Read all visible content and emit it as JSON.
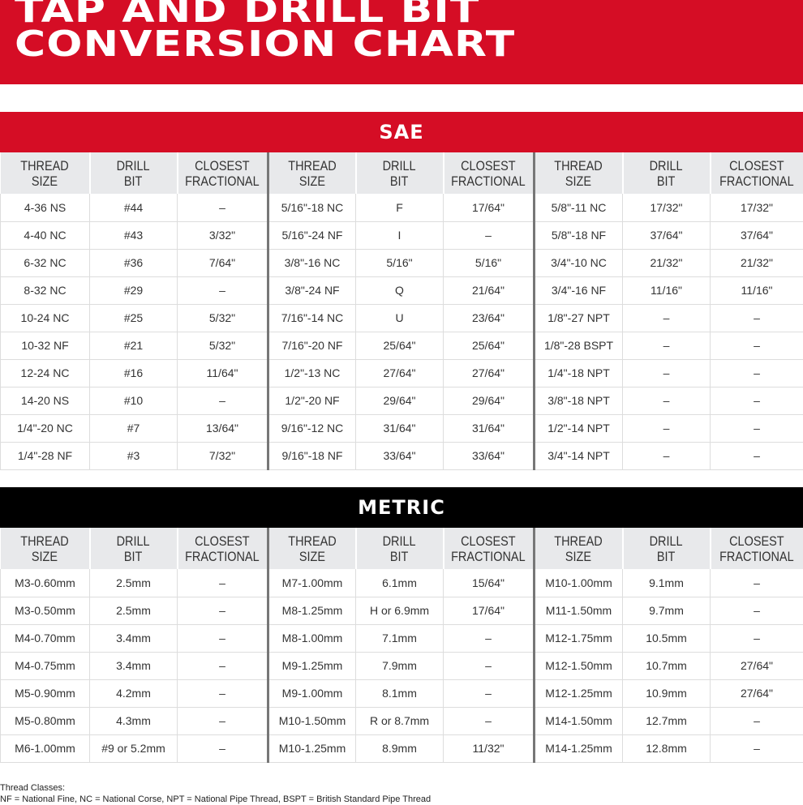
{
  "title": {
    "line1": "TAP AND DRILL BIT",
    "line2": "CONVERSION CHART"
  },
  "colors": {
    "red": "#d50d25",
    "black": "#000000"
  },
  "headers": [
    "THREAD SIZE",
    "DRILL BIT",
    "CLOSEST FRACTIONAL"
  ],
  "sae": {
    "label": "SAE",
    "rows": [
      [
        "4-36 NS",
        "#44",
        "–",
        "5/16\"-18 NC",
        "F",
        "17/64\"",
        "5/8\"-11 NC",
        "17/32\"",
        "17/32\""
      ],
      [
        "4-40 NC",
        "#43",
        "3/32\"",
        "5/16\"-24 NF",
        "I",
        "–",
        "5/8\"-18 NF",
        "37/64\"",
        "37/64\""
      ],
      [
        "6-32 NC",
        "#36",
        "7/64\"",
        "3/8\"-16 NC",
        "5/16\"",
        "5/16\"",
        "3/4\"-10 NC",
        "21/32\"",
        "21/32\""
      ],
      [
        "8-32 NC",
        "#29",
        "–",
        "3/8\"-24 NF",
        "Q",
        "21/64\"",
        "3/4\"-16 NF",
        "11/16\"",
        "11/16\""
      ],
      [
        "10-24 NC",
        "#25",
        "5/32\"",
        "7/16\"-14 NC",
        "U",
        "23/64\"",
        "1/8\"-27 NPT",
        "–",
        "–"
      ],
      [
        "10-32 NF",
        "#21",
        "5/32\"",
        "7/16\"-20 NF",
        "25/64\"",
        "25/64\"",
        "1/8\"-28 BSPT",
        "–",
        "–"
      ],
      [
        "12-24 NC",
        "#16",
        "11/64\"",
        "1/2\"-13 NC",
        "27/64\"",
        "27/64\"",
        "1/4\"-18 NPT",
        "–",
        "–"
      ],
      [
        "14-20 NS",
        "#10",
        "–",
        "1/2\"-20 NF",
        "29/64\"",
        "29/64\"",
        "3/8\"-18 NPT",
        "–",
        "–"
      ],
      [
        "1/4\"-20 NC",
        "#7",
        "13/64\"",
        "9/16\"-12 NC",
        "31/64\"",
        "31/64\"",
        "1/2\"-14 NPT",
        "–",
        "–"
      ],
      [
        "1/4\"-28 NF",
        "#3",
        "7/32\"",
        "9/16\"-18 NF",
        "33/64\"",
        "33/64\"",
        "3/4\"-14 NPT",
        "–",
        "–"
      ]
    ]
  },
  "metric": {
    "label": "METRIC",
    "rows": [
      [
        "M3-0.60mm",
        "2.5mm",
        "–",
        "M7-1.00mm",
        "6.1mm",
        "15/64\"",
        "M10-1.00mm",
        "9.1mm",
        "–"
      ],
      [
        "M3-0.50mm",
        "2.5mm",
        "–",
        "M8-1.25mm",
        "H or 6.9mm",
        "17/64\"",
        "M11-1.50mm",
        "9.7mm",
        "–"
      ],
      [
        "M4-0.70mm",
        "3.4mm",
        "–",
        "M8-1.00mm",
        "7.1mm",
        "–",
        "M12-1.75mm",
        "10.5mm",
        "–"
      ],
      [
        "M4-0.75mm",
        "3.4mm",
        "–",
        "M9-1.25mm",
        "7.9mm",
        "–",
        "M12-1.50mm",
        "10.7mm",
        "27/64\""
      ],
      [
        "M5-0.90mm",
        "4.2mm",
        "–",
        "M9-1.00mm",
        "8.1mm",
        "–",
        "M12-1.25mm",
        "10.9mm",
        "27/64\""
      ],
      [
        "M5-0.80mm",
        "4.3mm",
        "–",
        "M10-1.50mm",
        "R or 8.7mm",
        "–",
        "M14-1.50mm",
        "12.7mm",
        "–"
      ],
      [
        "M6-1.00mm",
        "#9 or 5.2mm",
        "–",
        "M10-1.25mm",
        "8.9mm",
        "11/32\"",
        "M14-1.25mm",
        "12.8mm",
        "–"
      ]
    ]
  },
  "footer": {
    "heading": "Thread Classes:",
    "text": "NF = National Fine, NC = National Corse, NPT = National Pipe Thread, BSPT = British Standard Pipe Thread"
  }
}
